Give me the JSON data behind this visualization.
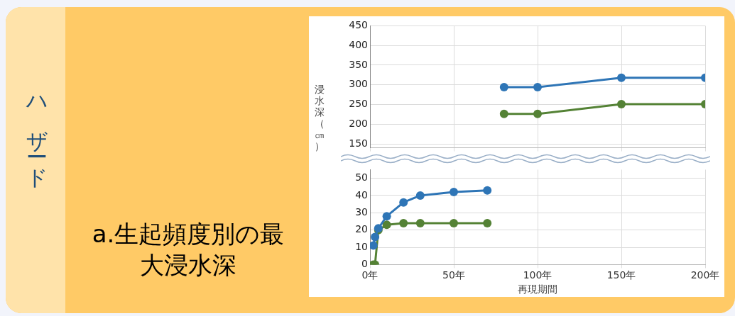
{
  "chart_data": [
    {
      "type": "line",
      "title": "a.生起頻度別の最大浸水深",
      "annotations": [
        "ハザード"
      ],
      "ylabel": "浸水深（㎝）",
      "x": [
        80,
        100,
        150,
        200
      ],
      "xlim": [
        0,
        200
      ],
      "xticks": [
        {
          "value": 0,
          "label": null
        },
        {
          "value": 50,
          "label": null
        },
        {
          "value": 100,
          "label": null
        },
        {
          "value": 150,
          "label": null
        },
        {
          "value": 200,
          "label": null
        }
      ],
      "ylim": [
        140,
        450
      ],
      "yticks": [
        150,
        200,
        250,
        300,
        350,
        400,
        450
      ],
      "tick_labels": "y",
      "grid": true,
      "marker": "circle",
      "line_style": "solid",
      "series": [
        {
          "color": "#2e75b6",
          "values": [
            294,
            294,
            318,
            318
          ]
        },
        {
          "color": "#548235",
          "values": [
            226,
            226,
            251,
            251
          ]
        }
      ]
    },
    {
      "type": "line",
      "xlabel": "再現期間",
      "x": [
        2,
        3,
        5,
        10,
        20,
        30,
        50,
        70
      ],
      "xlim": [
        0,
        200
      ],
      "xticks": [
        {
          "value": 0,
          "label": "0年"
        },
        {
          "value": 50,
          "label": "50年"
        },
        {
          "value": 100,
          "label": "100年"
        },
        {
          "value": 150,
          "label": "150年"
        },
        {
          "value": 200,
          "label": "200年"
        }
      ],
      "ylim": [
        0,
        55
      ],
      "yticks": [
        0,
        10,
        20,
        30,
        40,
        50
      ],
      "grid": true,
      "marker": "circle",
      "line_style": "solid",
      "series": [
        {
          "color": "#2e75b6",
          "values": [
            11,
            16,
            21,
            28,
            36,
            40,
            42,
            43
          ]
        },
        {
          "color": "#548235",
          "values": [
            0,
            0,
            20,
            23,
            24,
            24,
            24,
            24
          ]
        }
      ]
    }
  ]
}
